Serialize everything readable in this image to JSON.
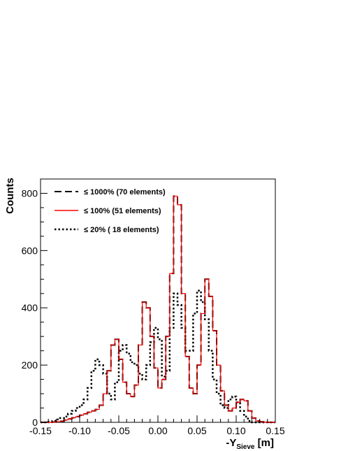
{
  "chart_data": {
    "type": "line",
    "xlabel": "-Y",
    "xlabel_sub": "Sieve",
    "xlabel_unit": " [m]",
    "ylabel": "Counts",
    "xlim": [
      -0.15,
      0.15
    ],
    "ylim": [
      0,
      850
    ],
    "x_ticks": [
      "-0.15",
      "-0.10",
      "-0.05",
      "0.00",
      "0.05",
      "0.10",
      "0.15"
    ],
    "y_ticks": [
      "0",
      "200",
      "400",
      "600",
      "800"
    ],
    "grid": false,
    "legend_position": "top-left",
    "x": [
      -0.15,
      -0.145,
      -0.14,
      -0.135,
      -0.13,
      -0.125,
      -0.12,
      -0.115,
      -0.11,
      -0.105,
      -0.1,
      -0.095,
      -0.09,
      -0.085,
      -0.08,
      -0.075,
      -0.07,
      -0.065,
      -0.06,
      -0.055,
      -0.05,
      -0.045,
      -0.04,
      -0.035,
      -0.03,
      -0.025,
      -0.02,
      -0.015,
      -0.01,
      -0.005,
      0,
      0.005,
      0.01,
      0.015,
      0.02,
      0.025,
      0.03,
      0.035,
      0.04,
      0.045,
      0.05,
      0.055,
      0.06,
      0.065,
      0.07,
      0.075,
      0.08,
      0.085,
      0.09,
      0.095,
      0.1,
      0.105,
      0.11,
      0.115,
      0.12,
      0.125,
      0.13,
      0.135,
      0.14,
      0.145
    ],
    "series": [
      {
        "name": "≤ 1000% (70 elements)",
        "color": "#000000",
        "style": "dashed",
        "values": [
          0,
          0,
          0,
          1,
          2,
          4,
          8,
          12,
          16,
          20,
          25,
          30,
          35,
          40,
          45,
          60,
          100,
          180,
          270,
          290,
          220,
          140,
          100,
          90,
          130,
          270,
          420,
          400,
          300,
          190,
          120,
          150,
          300,
          520,
          790,
          760,
          450,
          230,
          120,
          100,
          200,
          380,
          500,
          440,
          320,
          200,
          110,
          60,
          40,
          50,
          70,
          80,
          75,
          40,
          15,
          5,
          2,
          1,
          0,
          0
        ]
      },
      {
        "name": "≤ 100% (51 elements)",
        "color": "#ff0000",
        "style": "solid",
        "values": [
          0,
          0,
          0,
          1,
          2,
          4,
          8,
          12,
          16,
          20,
          25,
          30,
          35,
          40,
          45,
          60,
          100,
          180,
          270,
          290,
          220,
          140,
          100,
          90,
          130,
          270,
          420,
          400,
          300,
          190,
          120,
          150,
          300,
          520,
          790,
          760,
          450,
          230,
          120,
          100,
          200,
          380,
          500,
          440,
          320,
          200,
          110,
          60,
          40,
          50,
          70,
          80,
          75,
          40,
          15,
          5,
          2,
          1,
          0,
          0
        ]
      },
      {
        "name": "≤ 20% ( 18 elements)",
        "color": "#000000",
        "style": "dotted",
        "values": [
          0,
          0,
          2,
          5,
          10,
          15,
          20,
          30,
          40,
          50,
          60,
          80,
          120,
          180,
          220,
          200,
          170,
          100,
          80,
          140,
          250,
          270,
          240,
          210,
          200,
          170,
          150,
          200,
          280,
          330,
          290,
          160,
          180,
          330,
          450,
          410,
          330,
          250,
          250,
          380,
          460,
          420,
          360,
          250,
          150,
          100,
          60,
          50,
          80,
          90,
          70,
          40,
          20,
          5,
          0,
          0,
          0,
          0,
          0,
          0
        ]
      }
    ]
  }
}
